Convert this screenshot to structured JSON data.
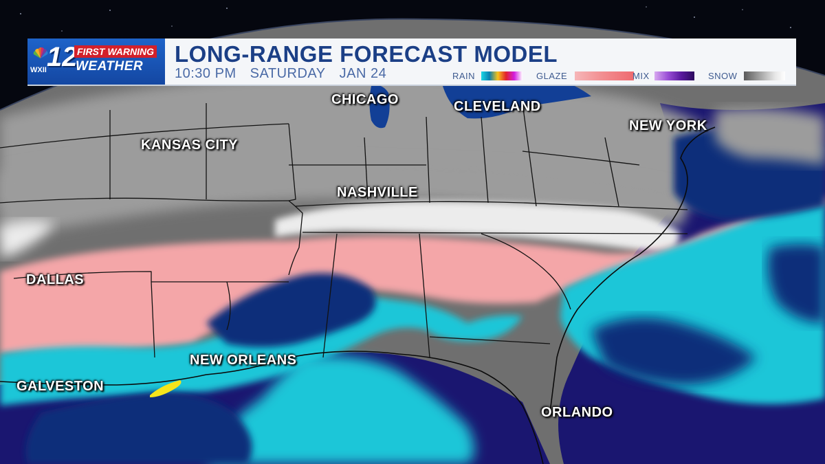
{
  "broadcast": {
    "station_number": "12",
    "call_letters": "WXII",
    "brand_top": "FIRST WARNING",
    "brand_bottom": "WEATHER"
  },
  "header": {
    "title": "LONG-RANGE FORECAST MODEL",
    "time": "10:30 PM",
    "day": "SATURDAY",
    "date": "JAN 24"
  },
  "legend": {
    "rain": {
      "label": "RAIN",
      "colors": [
        "#1bd7e6",
        "#0a7fb0",
        "#f6c21b",
        "#e2212c",
        "#d21ee0",
        "#ffffff"
      ]
    },
    "glaze": {
      "label": "GLAZE",
      "colors": [
        "#f6b6b8",
        "#f28b8e",
        "#ee6a70"
      ]
    },
    "mix": {
      "label": "MIX",
      "colors": [
        "#d8a9f0",
        "#9a4fd6",
        "#5a1a9e",
        "#2c0a5e"
      ]
    },
    "snow": {
      "label": "SNOW",
      "colors": [
        "#5a5a5a",
        "#8a8a8a",
        "#b8b8b8",
        "#e6e6e6",
        "#ffffff"
      ]
    }
  },
  "map": {
    "colors": {
      "land": "#6f6f6f",
      "snow_light": "#9c9c9c",
      "snow_heavy": "#ececec",
      "glaze": "#f4a6a8",
      "rain_light": "#1ac6d8",
      "rain_heavy": "#0b2f7a",
      "ocean": "#1a1670",
      "lakes": "#123f96",
      "yellow_rain": "#f5e51a"
    },
    "cities": [
      {
        "name": "CHICAGO"
      },
      {
        "name": "CLEVELAND"
      },
      {
        "name": "NEW YORK"
      },
      {
        "name": "KANSAS CITY"
      },
      {
        "name": "NASHVILLE"
      },
      {
        "name": "DALLAS"
      },
      {
        "name": "NEW ORLEANS"
      },
      {
        "name": "GALVESTON"
      },
      {
        "name": "ORLANDO"
      }
    ]
  }
}
